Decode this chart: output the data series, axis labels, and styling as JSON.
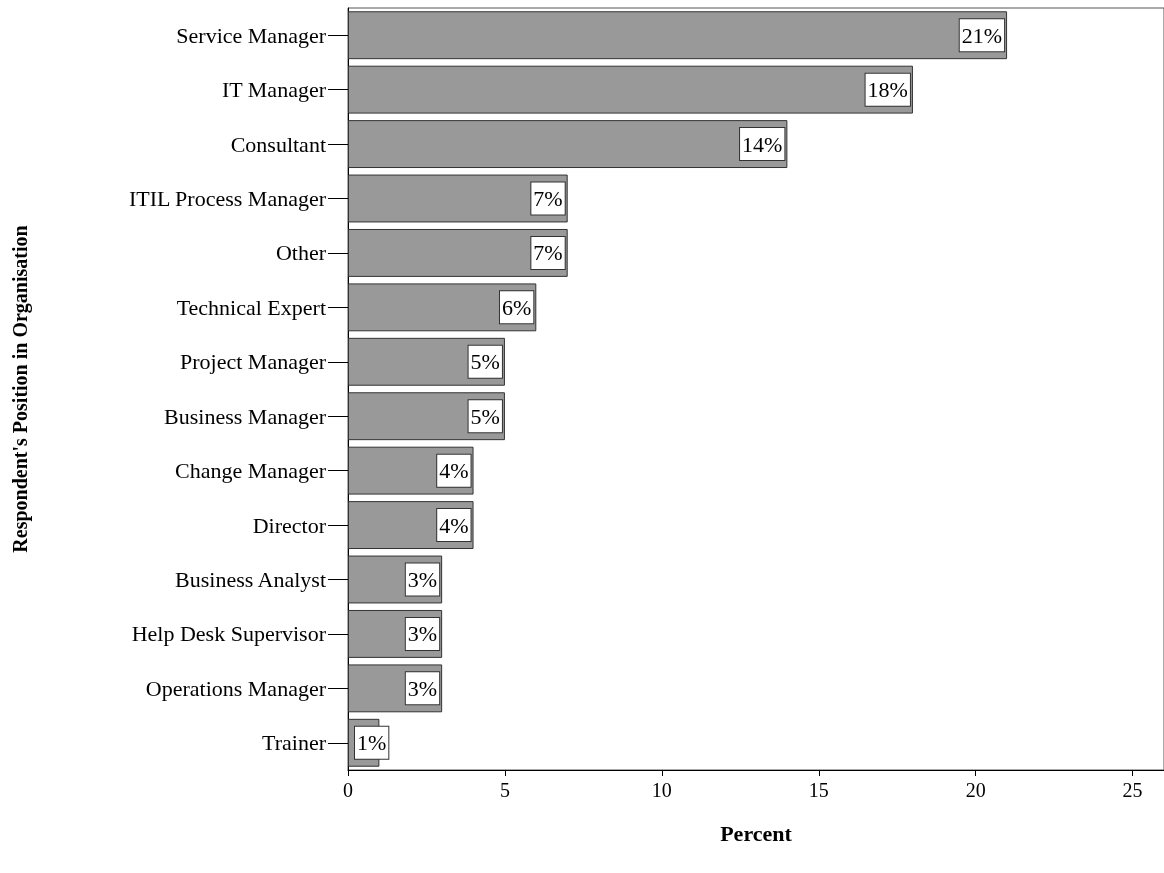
{
  "chart_data": {
    "type": "bar",
    "orientation": "horizontal",
    "xlabel": "Percent",
    "ylabel": "Respondent's Position in Organisation",
    "categories": [
      "Service Manager",
      "IT Manager",
      "Consultant",
      "ITIL Process Manager",
      "Other",
      "Technical Expert",
      "Project Manager",
      "Business Manager",
      "Change Manager",
      "Director",
      "Business Analyst",
      "Help Desk Supervisor",
      "Operations Manager",
      "Trainer"
    ],
    "values": [
      21,
      18,
      14,
      7,
      7,
      6,
      5,
      5,
      4,
      4,
      3,
      3,
      3,
      1
    ],
    "value_labels": [
      "21%",
      "18%",
      "14%",
      "7%",
      "7%",
      "6%",
      "5%",
      "5%",
      "4%",
      "4%",
      "3%",
      "3%",
      "3%",
      "1%"
    ],
    "color": "#999999",
    "xlim": [
      0,
      26
    ],
    "xticks": [
      0,
      5,
      10,
      15,
      20,
      25
    ]
  }
}
